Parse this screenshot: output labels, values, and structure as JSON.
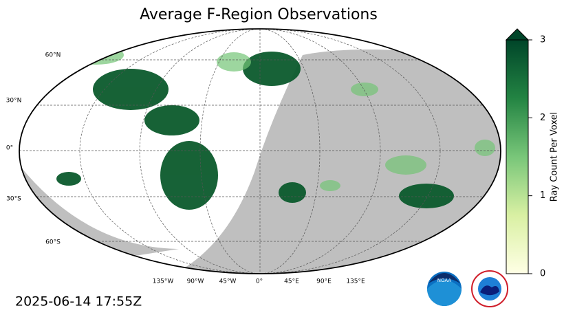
{
  "title": "Average F-Region Observations",
  "timestamp": "2025-06-14 17:55Z",
  "map": {
    "lat_labels": [
      "60°N",
      "30°N",
      "0°",
      "30°S",
      "60°S"
    ],
    "lon_labels": [
      "135°W",
      "90°W",
      "45°W",
      "0°",
      "45°E",
      "90°E",
      "135°E"
    ]
  },
  "colorbar": {
    "label": "Ray Count Per Voxel",
    "lim": [
      0,
      3
    ],
    "ticks": [
      0,
      1,
      2,
      3
    ]
  }
}
